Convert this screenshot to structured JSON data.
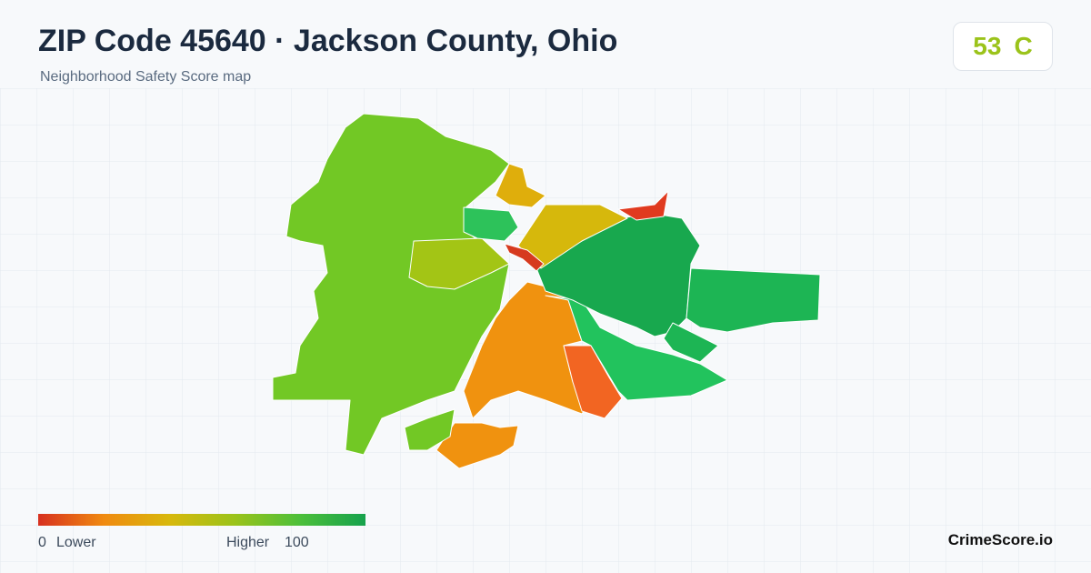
{
  "header": {
    "title": "ZIP Code 45640 · Jackson County, Ohio",
    "subtitle": "Neighborhood Safety Score map"
  },
  "score": {
    "value": "53",
    "grade": "C"
  },
  "legend": {
    "min": "0",
    "min_label": "Lower",
    "max_label": "Higher",
    "max": "100"
  },
  "brand": "CrimeScore.io"
}
